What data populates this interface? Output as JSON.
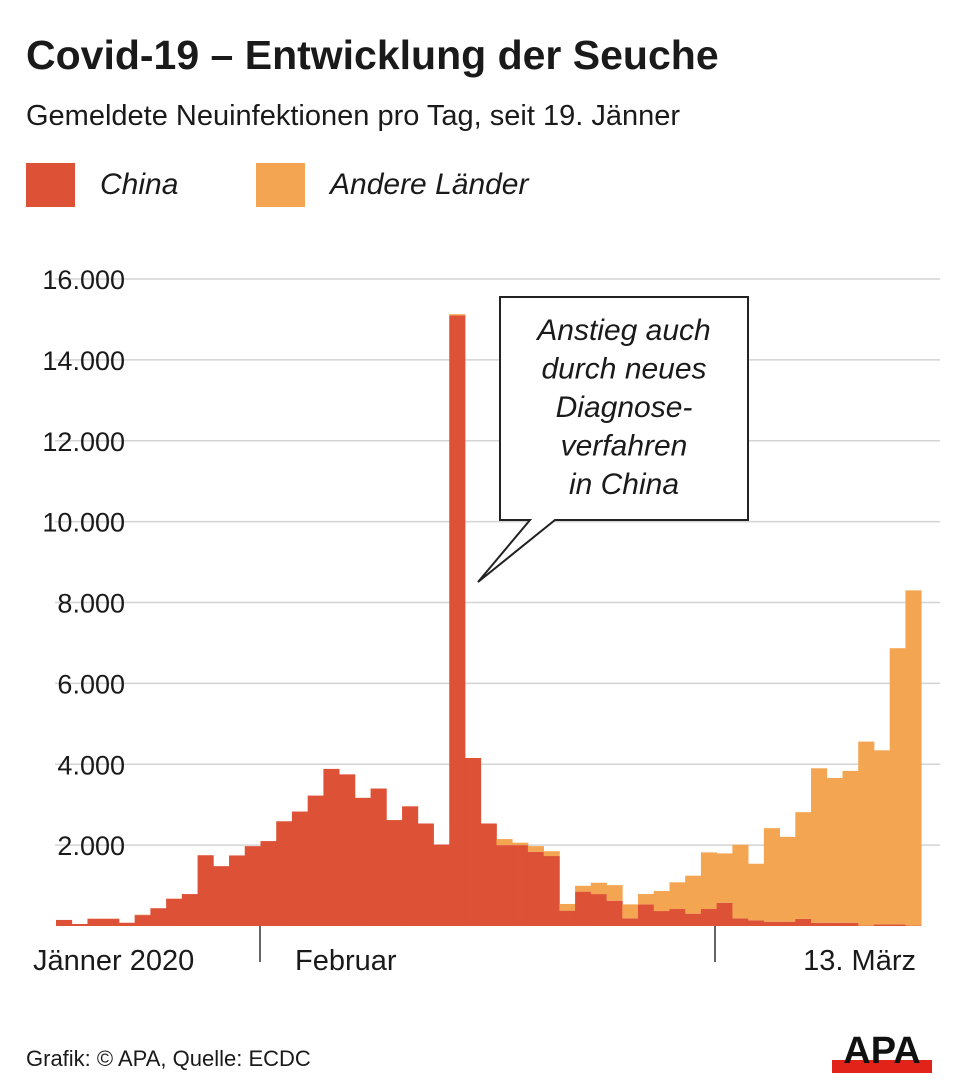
{
  "title": "Covid-19 – Entwicklung der Seuche",
  "subtitle": "Gemeldete Neuinfektionen pro Tag, seit 19. Jänner",
  "source": "Grafik: © APA, Quelle: ECDC",
  "logo_text": "APA",
  "chart_data": {
    "type": "bar",
    "stacked": true,
    "x_start": "2020-01-19",
    "x_end": "2020-03-13",
    "x_tick_labels": [
      "Jänner 2020",
      "Februar",
      "13. März"
    ],
    "y_tick_labels": [
      "2.000",
      "4.000",
      "6.000",
      "8.000",
      "10.000",
      "12.000",
      "14.000",
      "16.000"
    ],
    "ylim": [
      0,
      16000
    ],
    "grid": true,
    "legend_placement": "top-left",
    "annotation": [
      "Anstieg auch",
      "durch neues",
      "Diagnose-",
      "verfahren",
      "in China"
    ],
    "series": [
      {
        "name": "China",
        "color": "#dd5136",
        "values": [
          150,
          50,
          180,
          180,
          80,
          270,
          440,
          675,
          790,
          1750,
          1480,
          1745,
          1975,
          2100,
          2590,
          2830,
          3225,
          3885,
          3750,
          3170,
          3400,
          2620,
          2960,
          2535,
          2015,
          15100,
          4155,
          2535,
          2000,
          2000,
          1835,
          1730,
          380,
          850,
          790,
          625,
          190,
          535,
          370,
          420,
          305,
          420,
          575,
          190,
          140,
          105,
          105,
          175,
          80,
          80,
          80,
          10,
          40,
          40,
          10
        ]
      },
      {
        "name": "Andere Länder",
        "color": "#f4a551",
        "values": [
          0,
          0,
          0,
          0,
          0,
          10,
          0,
          0,
          0,
          0,
          0,
          0,
          0,
          0,
          0,
          0,
          0,
          0,
          0,
          0,
          0,
          0,
          0,
          0,
          0,
          30,
          0,
          0,
          150,
          60,
          140,
          120,
          165,
          145,
          280,
          385,
          345,
          255,
          495,
          660,
          940,
          1400,
          1220,
          1820,
          1400,
          2315,
          2100,
          2640,
          3820,
          3580,
          3755,
          4550,
          4305,
          6830,
          8290
        ]
      }
    ]
  }
}
